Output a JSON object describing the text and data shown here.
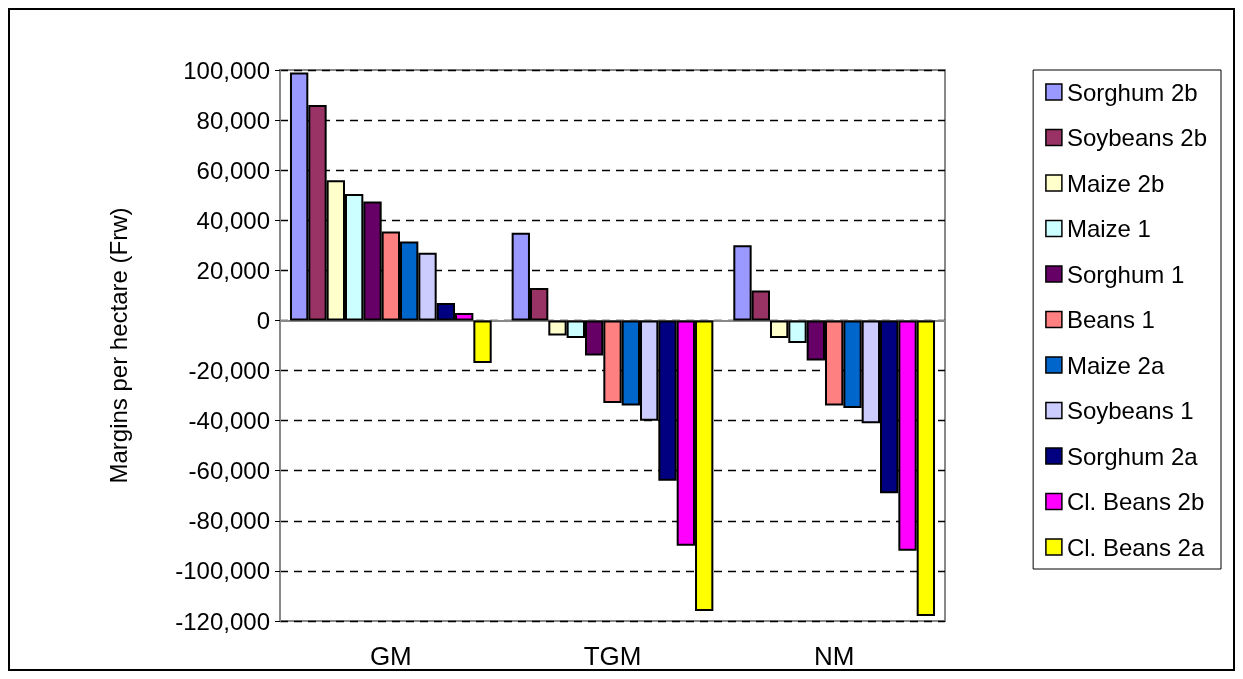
{
  "chart_data": {
    "type": "bar",
    "ylabel": "Margins per hectare (Frw)",
    "categories": [
      "GM",
      "TGM",
      "NM"
    ],
    "series": [
      {
        "name": "Sorghum 2b",
        "color": "#9999ff",
        "values": [
          99000,
          35000,
          30000
        ]
      },
      {
        "name": "Soybeans 2b",
        "color": "#993366",
        "values": [
          86000,
          13000,
          12000
        ]
      },
      {
        "name": "Maize 2b",
        "color": "#ffffcc",
        "values": [
          56000,
          -6000,
          -7000
        ]
      },
      {
        "name": "Maize 1",
        "color": "#ccffff",
        "values": [
          50500,
          -7000,
          -9000
        ]
      },
      {
        "name": "Sorghum 1",
        "color": "#660066",
        "values": [
          47500,
          -14000,
          -16000
        ]
      },
      {
        "name": "Beans 1",
        "color": "#ff8080",
        "values": [
          35500,
          -33000,
          -34000
        ]
      },
      {
        "name": "Maize 2a",
        "color": "#0066cc",
        "values": [
          31500,
          -34000,
          -35000
        ]
      },
      {
        "name": "Soybeans 1",
        "color": "#ccccff",
        "values": [
          27000,
          -40000,
          -41000
        ]
      },
      {
        "name": "Sorghum 2a",
        "color": "#000080",
        "values": [
          7000,
          -64000,
          -69000
        ]
      },
      {
        "name": "Cl. Beans 2b",
        "color": "#ff00ff",
        "values": [
          3000,
          -90000,
          -92000
        ]
      },
      {
        "name": "Cl. Beans 2a",
        "color": "#ffff00",
        "values": [
          -17000,
          -116000,
          -118000
        ]
      }
    ],
    "ylim": [
      -120000,
      100000
    ],
    "yticks": [
      {
        "value": -120000,
        "label": "-120,000"
      },
      {
        "value": -100000,
        "label": "-100,000"
      },
      {
        "value": -80000,
        "label": "-80,000"
      },
      {
        "value": -60000,
        "label": "-60,000"
      },
      {
        "value": -40000,
        "label": "-40,000"
      },
      {
        "value": -20000,
        "label": "-20,000"
      },
      {
        "value": 0,
        "label": "0"
      },
      {
        "value": 20000,
        "label": "20,000"
      },
      {
        "value": 40000,
        "label": "40,000"
      },
      {
        "value": 60000,
        "label": "60,000"
      },
      {
        "value": 80000,
        "label": "80,000"
      },
      {
        "value": 100000,
        "label": "100,000"
      }
    ],
    "grid": "y",
    "legend": "right"
  }
}
